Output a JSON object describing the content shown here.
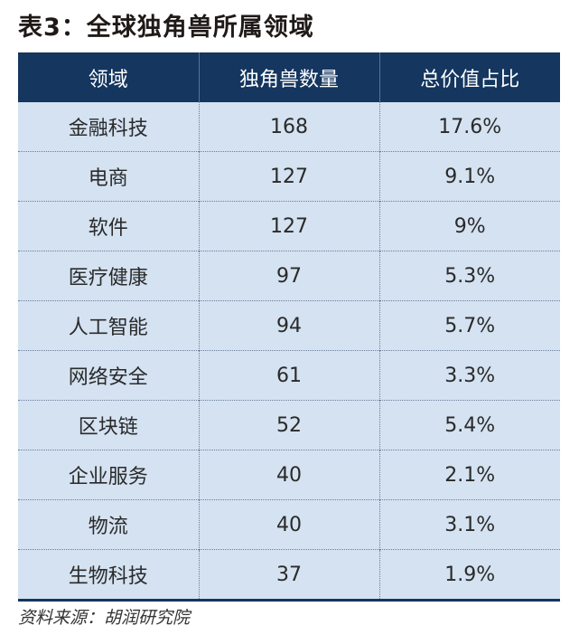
{
  "title": "表3：全球独角兽所属领域",
  "table": {
    "headers": [
      "领域",
      "独角兽数量",
      "总价值占比"
    ],
    "rows": [
      [
        "金融科技",
        "168",
        "17.6%"
      ],
      [
        "电商",
        "127",
        "9.1%"
      ],
      [
        "软件",
        "127",
        "9%"
      ],
      [
        "医疗健康",
        "97",
        "5.3%"
      ],
      [
        "人工智能",
        "94",
        "5.7%"
      ],
      [
        "网络安全",
        "61",
        "3.3%"
      ],
      [
        "区块链",
        "52",
        "5.4%"
      ],
      [
        "企业服务",
        "40",
        "2.1%"
      ],
      [
        "物流",
        "40",
        "3.1%"
      ],
      [
        "生物科技",
        "37",
        "1.9%"
      ]
    ]
  },
  "source": "资料来源：胡润研究院",
  "colors": {
    "header_bg": "#14365f",
    "row_bg": "#d4e2f1",
    "header_text": "#ffffff"
  }
}
